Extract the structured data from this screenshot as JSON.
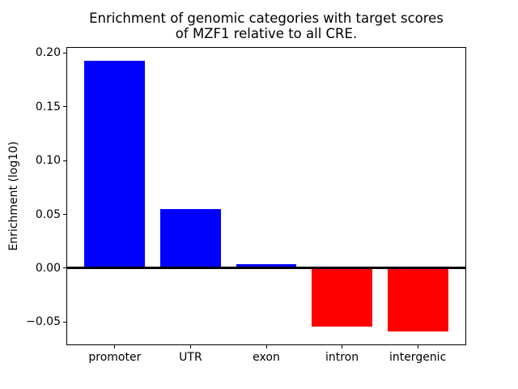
{
  "chart_data": {
    "type": "bar",
    "title_lines": [
      "Enrichment of genomic categories with target scores",
      "of MZF1 relative to all CRE."
    ],
    "title": "Enrichment of genomic categories with target scores of MZF1 relative to all CRE.",
    "xlabel": "",
    "ylabel": "Enrichment (log10)",
    "categories": [
      "promoter",
      "UTR",
      "exon",
      "intron",
      "intergenic"
    ],
    "values": [
      0.193,
      0.055,
      0.0035,
      -0.054,
      -0.059
    ],
    "positive_color": "#0000ff",
    "negative_color": "#ff0000",
    "bar_colors": [
      "#0000ff",
      "#0000ff",
      "#0000ff",
      "#ff0000",
      "#ff0000"
    ],
    "yticks": [
      0.2,
      0.15,
      0.1,
      0.05,
      0.0,
      -0.05
    ],
    "ytick_labels": [
      "0.20",
      "0.15",
      "0.10",
      "0.05",
      "0.00",
      "−0.05"
    ],
    "ylim": [
      -0.0716,
      0.2056
    ],
    "xlim": [
      -0.64,
      4.64
    ],
    "bar_width_units": 0.8,
    "grid": false,
    "legend": null,
    "zero_line": true,
    "axis_color": "#000000",
    "background_color": "#ffffff"
  }
}
